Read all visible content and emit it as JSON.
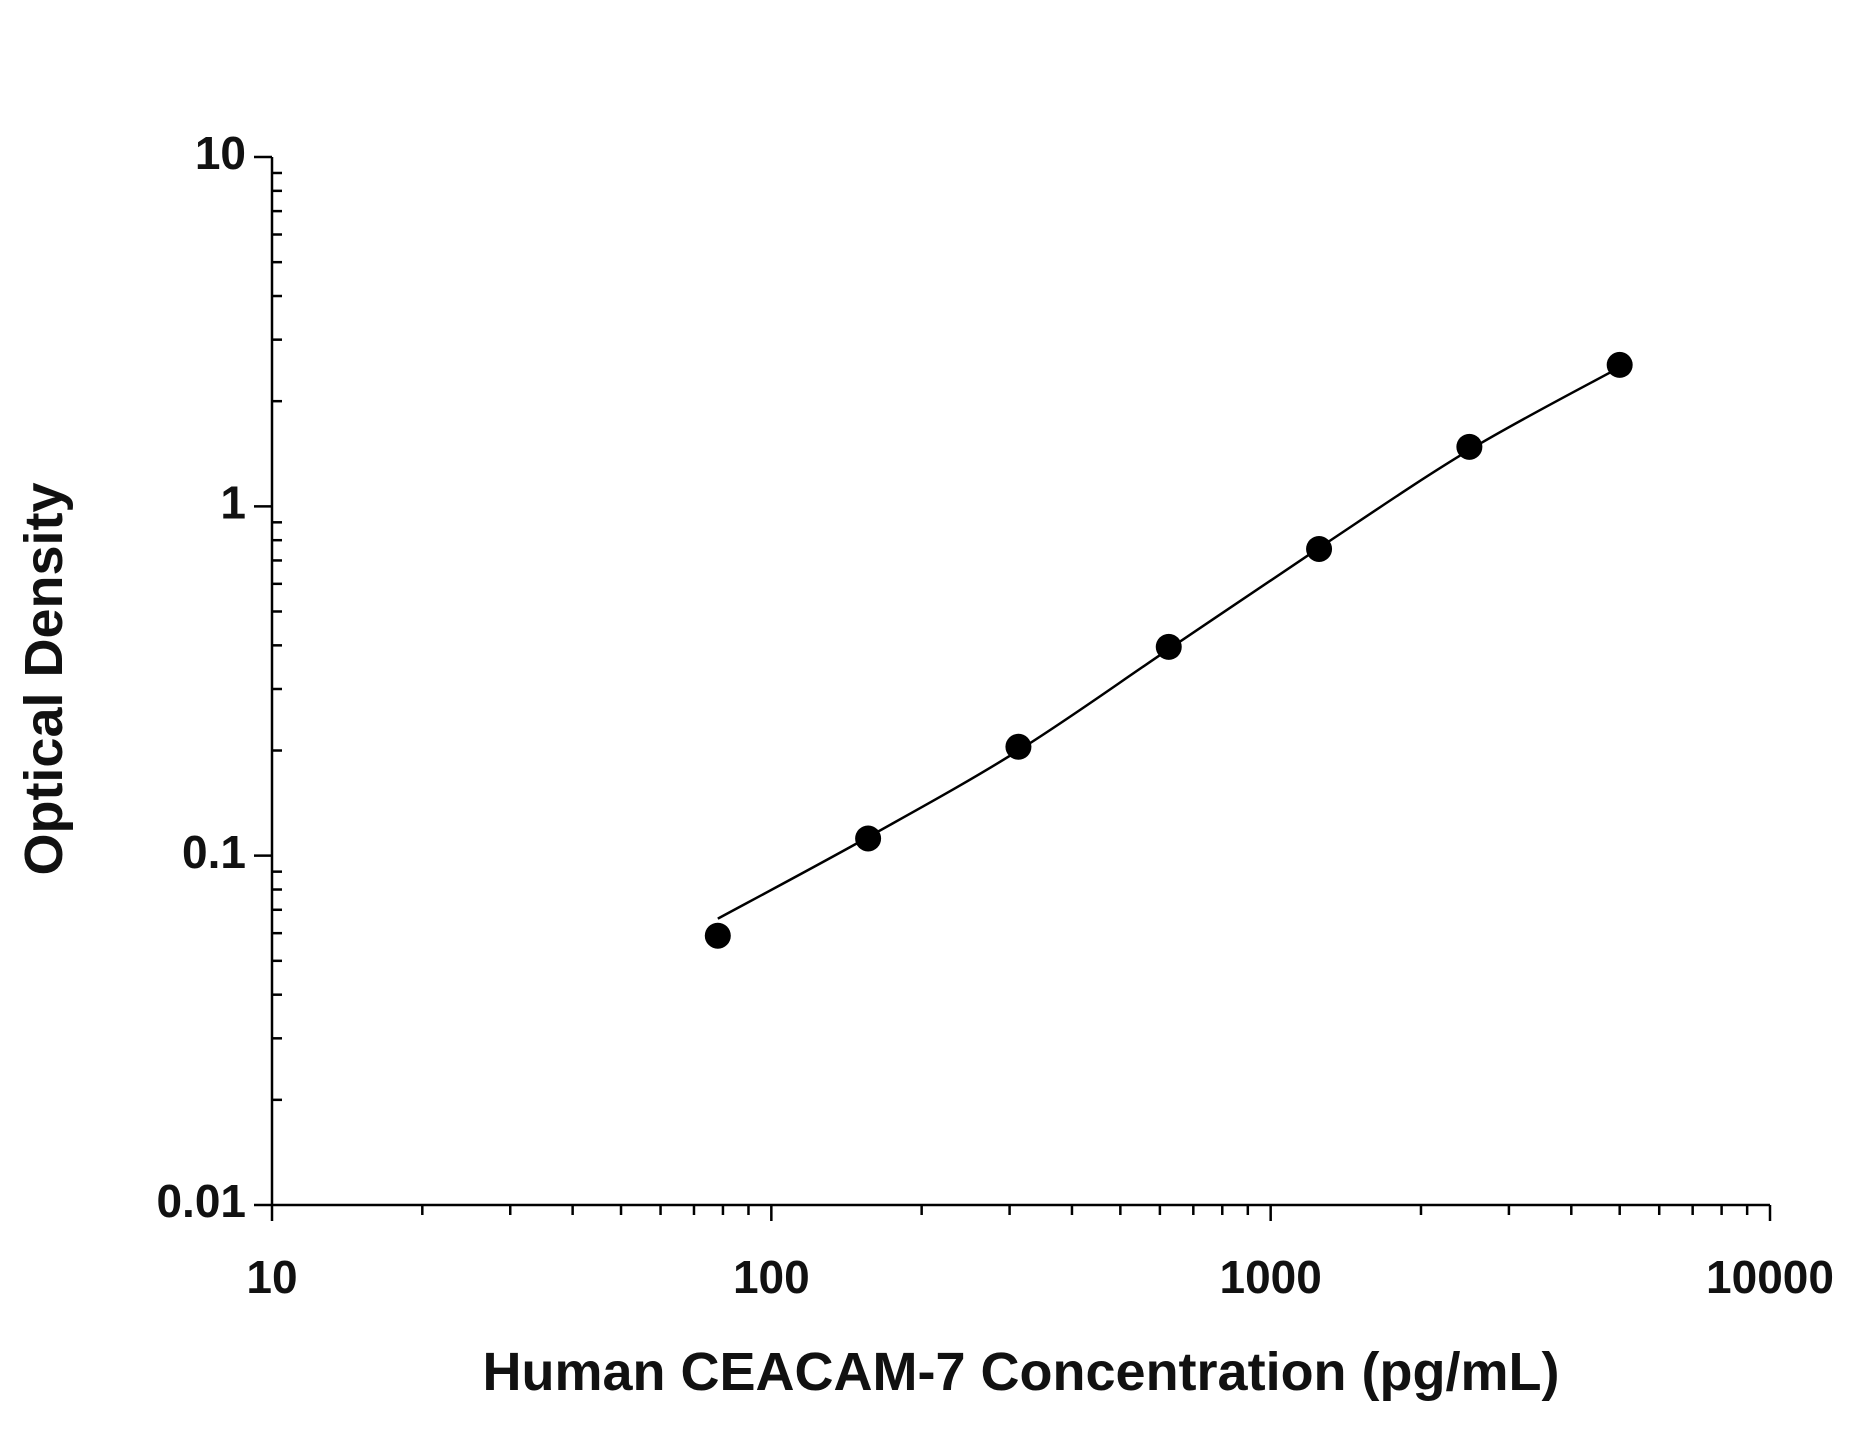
{
  "chart_data": {
    "type": "scatter",
    "xlabel": "Human CEACAM-7 Concentration (pg/mL)",
    "ylabel": "Optical Density",
    "xscale": "log",
    "yscale": "log",
    "xlim": [
      10,
      10000
    ],
    "xticks": [
      10,
      100,
      1000,
      10000
    ],
    "ylim": [
      0.01,
      10
    ],
    "yticks": [
      0.01,
      0.1,
      1,
      10
    ],
    "series": [
      {
        "marker": "circle",
        "color": "#000000",
        "x": [
          78.125,
          156.25,
          312.5,
          625,
          1250,
          2500,
          5000
        ],
        "values": [
          0.059,
          0.112,
          0.205,
          0.396,
          0.755,
          1.48,
          2.54
        ]
      },
      {
        "style": "line",
        "color": "#000000",
        "x": [
          78.125,
          156.25,
          312.5,
          625,
          1250,
          2500,
          5000
        ],
        "values": [
          0.066,
          0.113,
          0.2,
          0.39,
          0.76,
          1.45,
          2.5
        ]
      }
    ]
  }
}
